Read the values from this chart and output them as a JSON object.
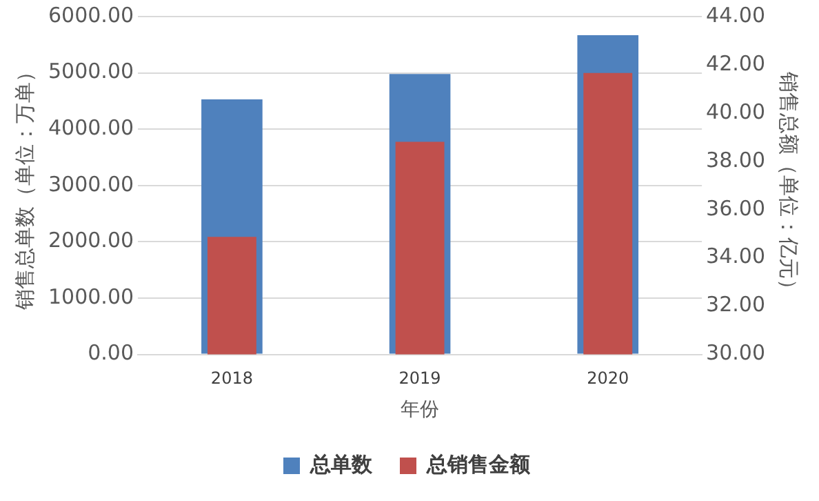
{
  "chart_data": {
    "type": "bar",
    "categories": [
      "2018",
      "2019",
      "2020"
    ],
    "xlabel": "年份",
    "ylabel": "销售总单数（单位：万单）",
    "y2label": "销售总额（单位：亿元）",
    "series": [
      {
        "name": "总单数",
        "color": "#4f81bd",
        "values": [
          4530,
          4980,
          5670
        ]
      },
      {
        "name": "总销售金额",
        "color": "#c0504d",
        "values": [
          34.87,
          38.81,
          41.66
        ],
        "axis": "y2"
      }
    ],
    "ylim": [
      0,
      6000
    ],
    "yticks": [
      {
        "value": 0,
        "label": "0.00"
      },
      {
        "value": 1000,
        "label": "1000.00"
      },
      {
        "value": 2000,
        "label": "2000.00"
      },
      {
        "value": 3000,
        "label": "3000.00"
      },
      {
        "value": 4000,
        "label": "4000.00"
      },
      {
        "value": 5000,
        "label": "5000.00"
      },
      {
        "value": 6000,
        "label": "6000.00"
      }
    ],
    "y2lim": [
      30,
      44
    ],
    "y2ticks": [
      {
        "value": 30,
        "label": "30.00"
      },
      {
        "value": 32,
        "label": "32.00"
      },
      {
        "value": 34,
        "label": "34.00"
      },
      {
        "value": 36,
        "label": "36.00"
      },
      {
        "value": 38,
        "label": "38.00"
      },
      {
        "value": 40,
        "label": "40.00"
      },
      {
        "value": 42,
        "label": "42.00"
      },
      {
        "value": 44,
        "label": "44.00"
      }
    ],
    "grid": "y",
    "legend": "bottom"
  }
}
